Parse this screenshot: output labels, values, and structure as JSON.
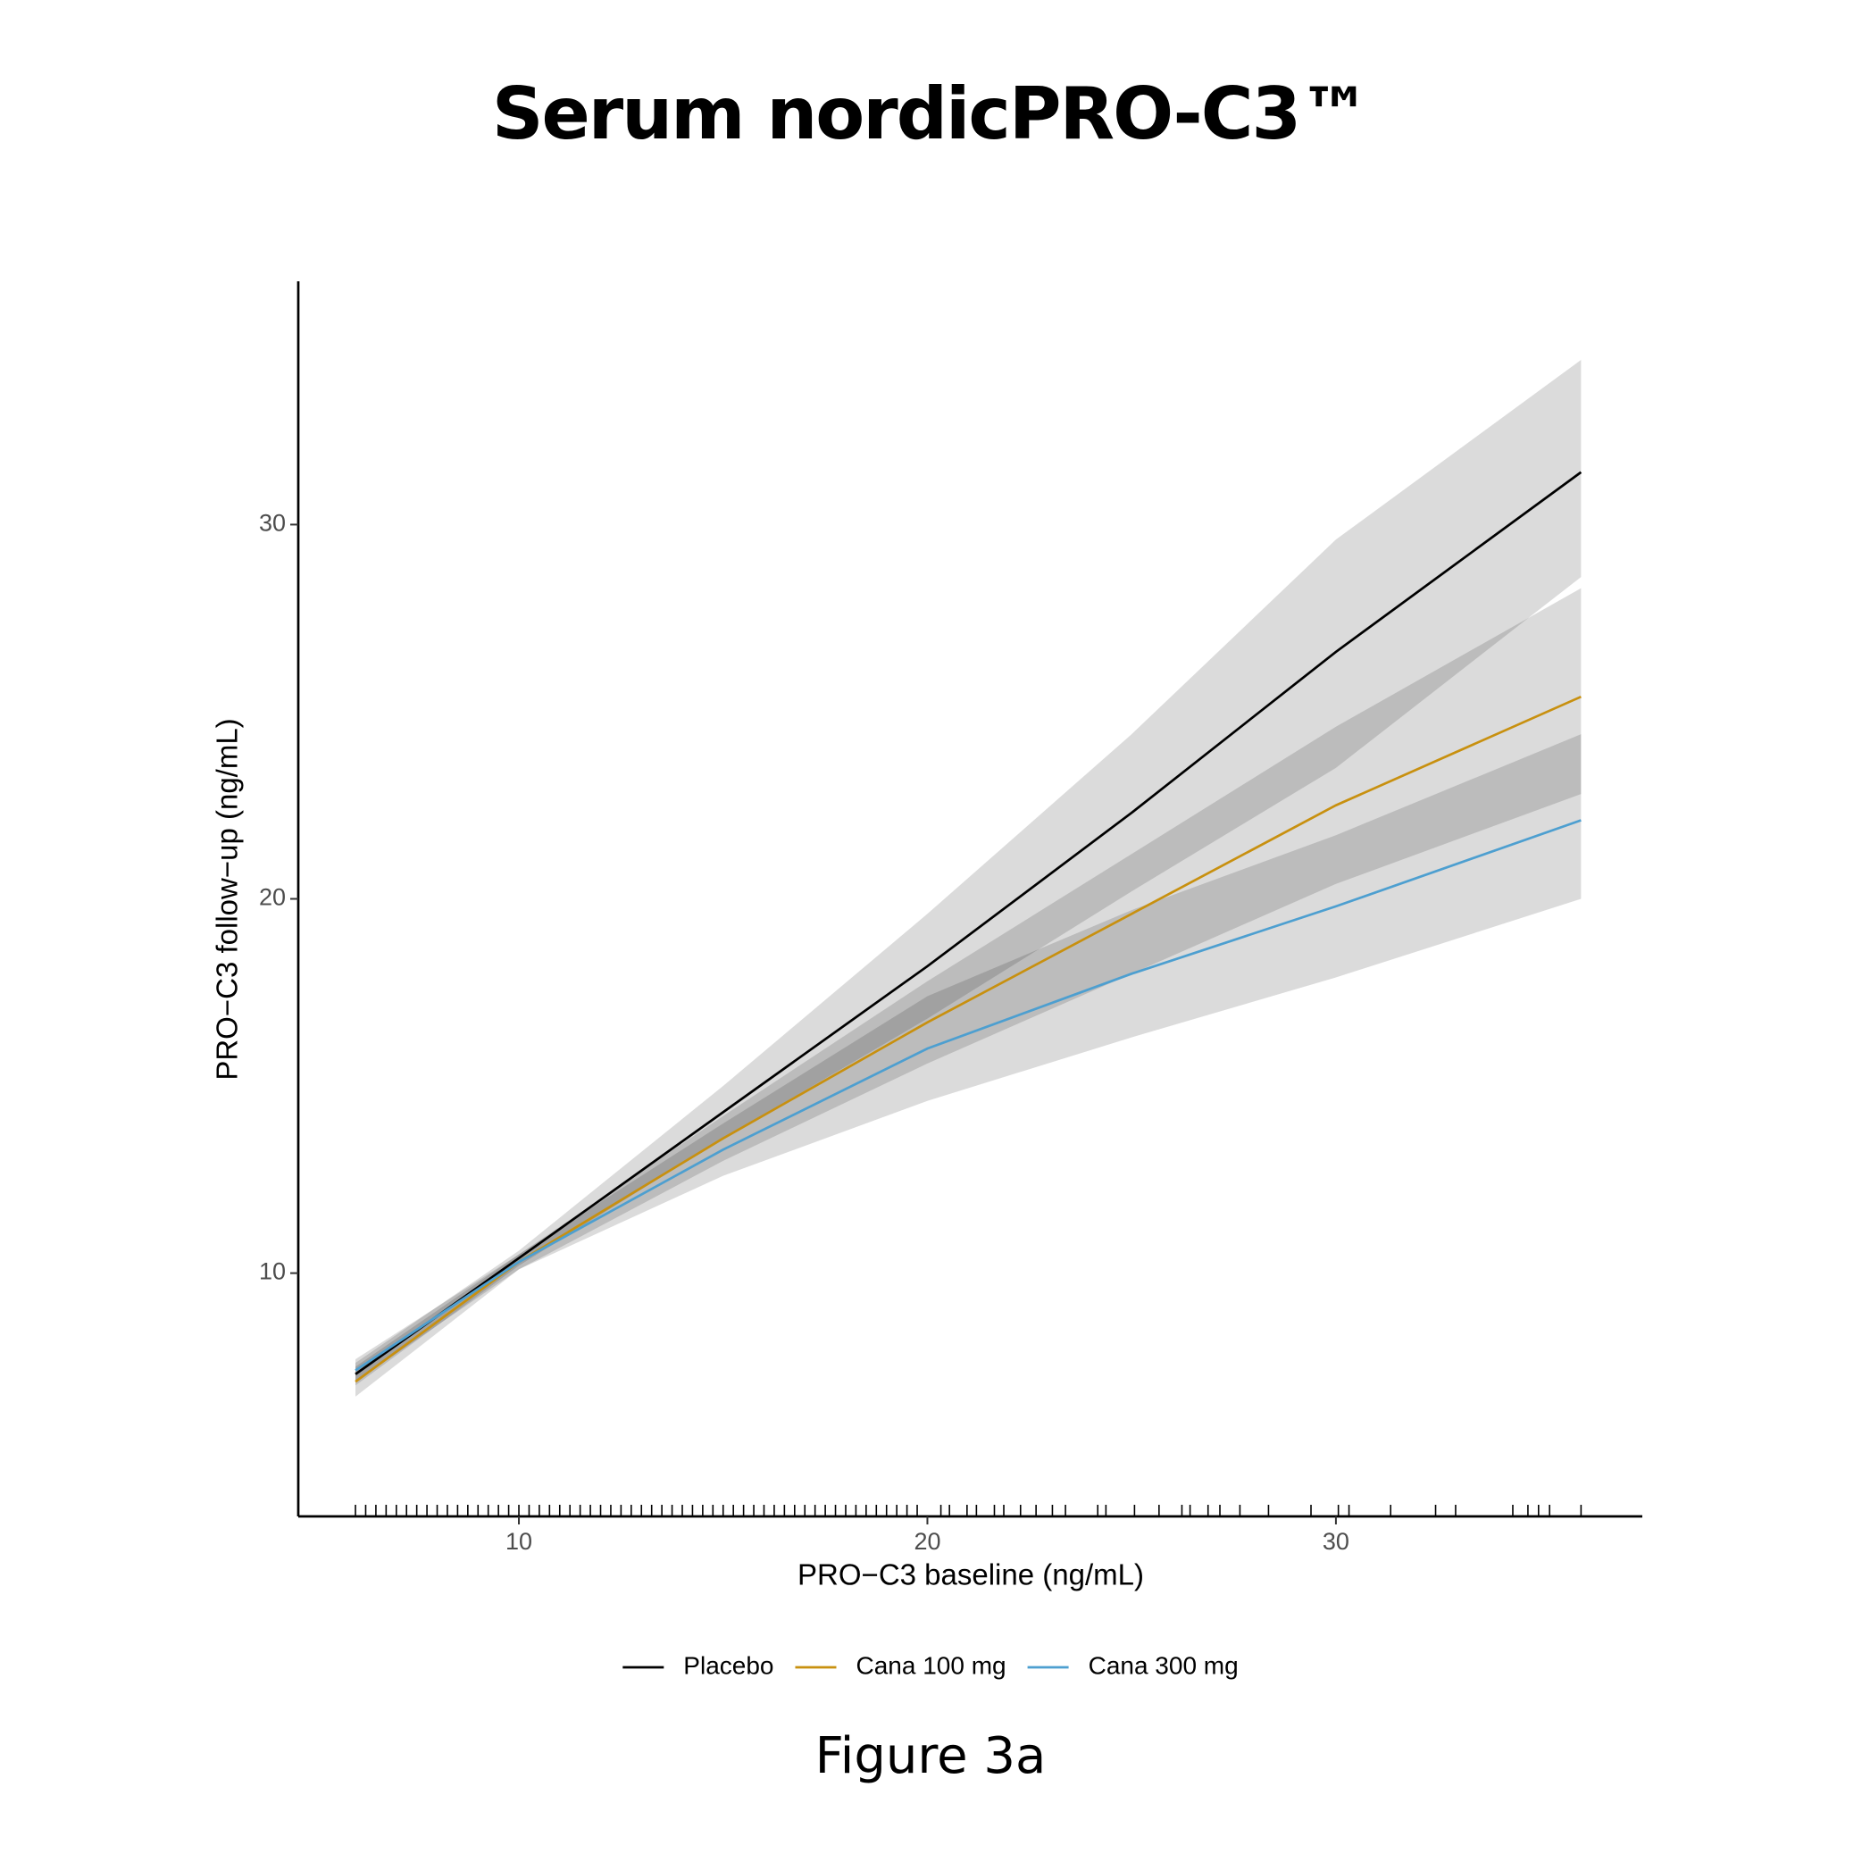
{
  "chart_data": {
    "type": "line",
    "title": "Serum nordicPRO-C3™",
    "x_label": "PRO−C3 baseline (ng/mL)",
    "y_label": "PRO−C3 follow−up (ng/mL)",
    "caption": "Figure 3a",
    "x": [
      6,
      10,
      15,
      20,
      25,
      30,
      36
    ],
    "series": [
      {
        "name": "Placebo",
        "color": "#000000",
        "values": [
          7.3,
          10.4,
          14.3,
          18.2,
          22.3,
          26.6,
          31.4
        ],
        "lower": [
          7.0,
          10.2,
          13.6,
          16.8,
          20.2,
          23.5,
          28.6
        ],
        "upper": [
          7.6,
          10.6,
          15.0,
          19.6,
          24.4,
          29.6,
          34.4
        ]
      },
      {
        "name": "Cana 100 mg",
        "color": "#c8900f",
        "values": [
          7.1,
          10.3,
          13.6,
          16.7,
          19.6,
          22.5,
          25.4
        ],
        "lower": [
          6.7,
          10.1,
          13.0,
          15.6,
          18.0,
          20.4,
          22.8
        ],
        "upper": [
          7.5,
          10.5,
          14.2,
          17.8,
          21.2,
          24.6,
          28.3
        ]
      },
      {
        "name": "Cana 300 mg",
        "color": "#4d9fd0",
        "values": [
          7.4,
          10.3,
          13.3,
          16.0,
          18.0,
          19.8,
          22.1
        ],
        "lower": [
          7.1,
          10.1,
          12.6,
          14.6,
          16.3,
          17.9,
          20.0
        ],
        "upper": [
          7.7,
          10.5,
          14.0,
          17.4,
          19.7,
          21.7,
          24.4
        ]
      }
    ],
    "rug": [
      6.0,
      6.25,
      6.5,
      6.75,
      7.0,
      7.25,
      7.5,
      7.75,
      8.0,
      8.25,
      8.5,
      8.75,
      9.0,
      9.25,
      9.5,
      9.75,
      10.0,
      10.25,
      10.5,
      10.75,
      11.0,
      11.25,
      11.5,
      11.75,
      12.0,
      12.25,
      12.5,
      12.75,
      13.0,
      13.25,
      13.5,
      13.75,
      14.0,
      14.25,
      14.5,
      14.75,
      15.0,
      15.25,
      15.5,
      15.75,
      16.0,
      16.25,
      16.5,
      16.75,
      17.0,
      17.25,
      17.5,
      17.75,
      18.0,
      18.25,
      18.5,
      18.75,
      19.0,
      19.25,
      19.5,
      19.75,
      20.33,
      20.54,
      20.97,
      21.2,
      21.64,
      21.87,
      22.28,
      22.66,
      23.06,
      23.38,
      24.17,
      24.37,
      25.07,
      25.67,
      26.23,
      26.43,
      26.87,
      27.16,
      27.65,
      28.35,
      29.39,
      30.06,
      30.32,
      31.34,
      32.44,
      32.93,
      34.33,
      34.7,
      34.96,
      35.23,
      36.0
    ],
    "band_color": "#000000",
    "xlim": [
      4.6,
      37.5
    ],
    "ylim": [
      3.5,
      36.5
    ],
    "xticks": [
      10,
      20,
      30
    ],
    "yticks": [
      10,
      20,
      30
    ],
    "grid": false,
    "legend": "bottom"
  }
}
